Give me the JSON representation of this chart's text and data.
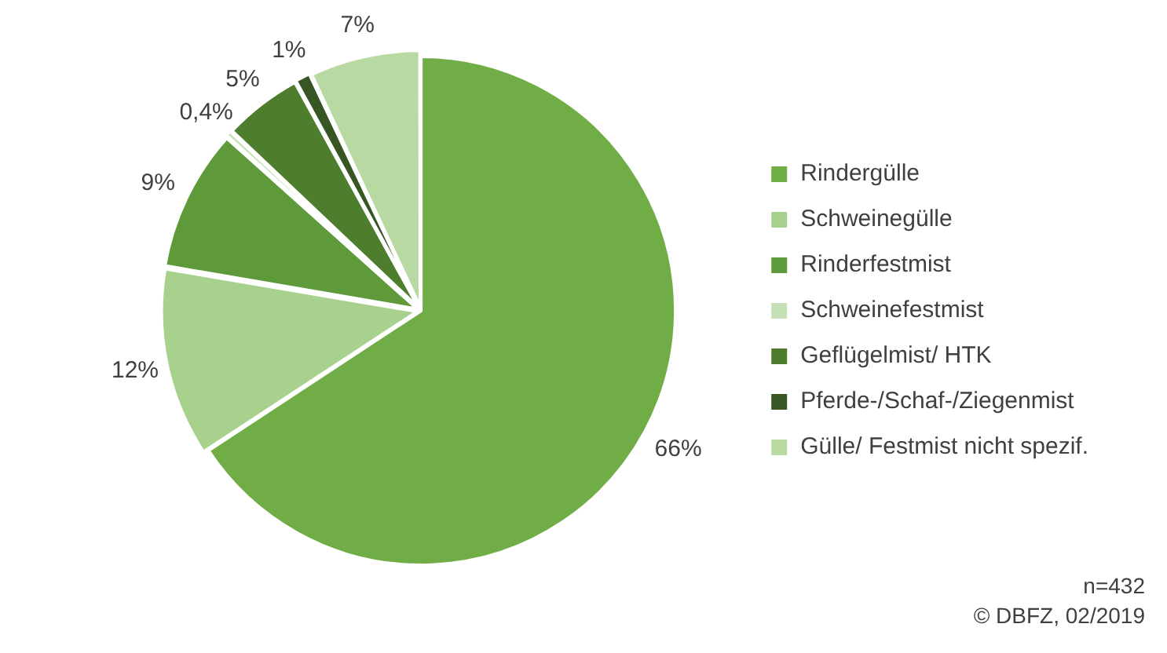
{
  "chart_data": {
    "type": "pie",
    "categories": [
      "Rindergülle",
      "Schweinegülle",
      "Rinderfestmist",
      "Schweinefestmist",
      "Geflügelmist/ HTK",
      "Pferde-/Schaf-/Ziegenmist",
      "Gülle/ Festmist nicht spezif."
    ],
    "values": [
      66,
      12,
      9,
      0.4,
      5,
      1,
      7
    ],
    "colors": [
      "#70ad47",
      "#a9d18e",
      "#5f9a3a",
      "#c5e0b4",
      "#4e7d2e",
      "#375623",
      "#b9d9a3"
    ],
    "value_labels": [
      "66%",
      "12%",
      "9%",
      "0,4%",
      "5%",
      "1%",
      "7%"
    ],
    "legend": "right",
    "annotations": [
      "n=432",
      "© DBFZ, 02/2019"
    ]
  }
}
